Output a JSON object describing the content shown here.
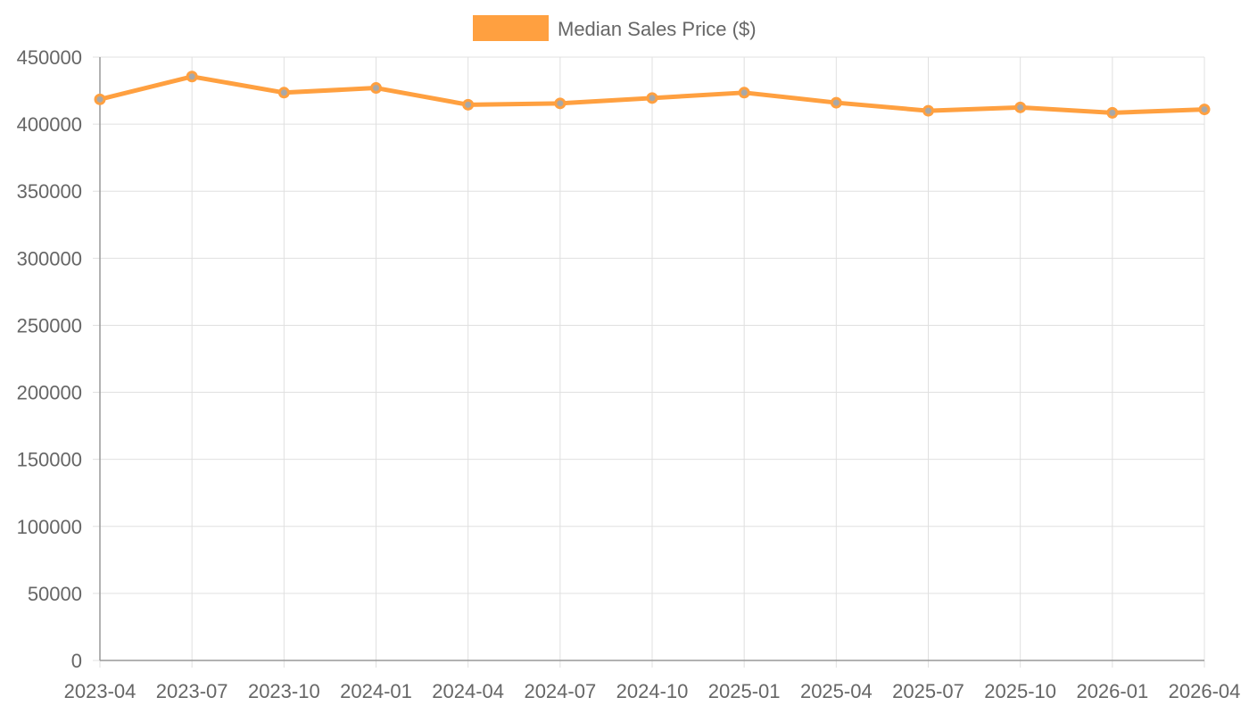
{
  "chart_data": {
    "type": "line",
    "x": [
      "2023-04",
      "2023-07",
      "2023-10",
      "2024-01",
      "2024-04",
      "2024-07",
      "2024-10",
      "2025-01",
      "2025-04",
      "2025-07",
      "2025-10",
      "2026-01",
      "2026-04"
    ],
    "series": [
      {
        "name": "Median Sales Price ($)",
        "values": [
          418500,
          435500,
          423500,
          427000,
          414500,
          415500,
          419500,
          423500,
          416000,
          410000,
          412500,
          408500,
          411000
        ],
        "color": "#ffa040"
      }
    ],
    "ylim": [
      0,
      450000
    ],
    "yticks": [
      "0",
      "50000",
      "100000",
      "150000",
      "200000",
      "250000",
      "300000",
      "350000",
      "400000",
      "450000"
    ],
    "grid": true,
    "legend": "top-center",
    "title": "",
    "xlabel": "",
    "ylabel": ""
  }
}
